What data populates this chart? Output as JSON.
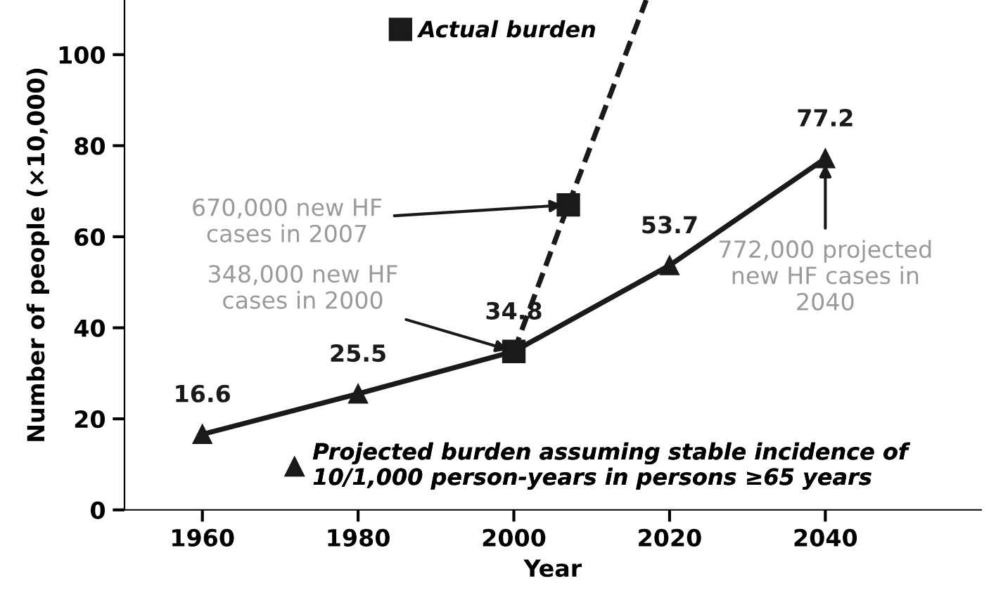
{
  "chart_data": {
    "type": "line",
    "xlabel": "Year",
    "ylabel": "Number of people (×10,000)",
    "x": [
      1960,
      1980,
      2000,
      2020,
      2040
    ],
    "series": [
      {
        "name": "Actual burden",
        "color": "#1a1a1a",
        "x": [
          2000,
          2007
        ],
        "values": [
          34.8,
          67
        ],
        "marker": "square",
        "line_style": "dashed"
      },
      {
        "color": "#1a1a1a",
        "x": [
          2007,
          2017
        ],
        "values": [
          67,
          112
        ],
        "marker": "none",
        "line_style": "dashed"
      },
      {
        "name": "Projected burden assuming stable incidence of\n10/1,000 person-years in persons ≥65 years",
        "color": "#1a1a1a",
        "values": [
          16.6,
          25.5,
          34.8,
          53.7,
          77.2
        ],
        "marker": "triangle",
        "line_style": "solid",
        "value_labels": [
          "16.6",
          "25.5",
          "34.8",
          "53.7",
          "77.2"
        ]
      }
    ],
    "xlim": [
      1950,
      2060
    ],
    "ylim": [
      0,
      112
    ],
    "xticks": [
      1960,
      1980,
      2000,
      2020,
      2040
    ],
    "yticks": [
      0,
      20,
      40,
      60,
      80,
      100
    ],
    "grid": false,
    "legend": "top",
    "annotations": [
      {
        "text": "670,000 new HF\ncases in 2007",
        "x": 2007,
        "y": 67
      },
      {
        "text": "348,000 new HF\ncases in 2000",
        "x": 2000,
        "y": 34.8
      },
      {
        "text": "772,000 projected\nnew HF cases in\n2040",
        "x": 2040,
        "y": 77.2
      }
    ]
  }
}
